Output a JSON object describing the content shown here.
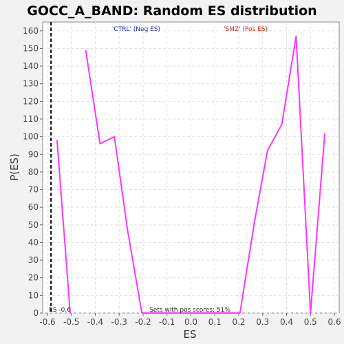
{
  "chart_data": {
    "type": "line",
    "title": "GOCC_A_BAND: Random ES distribution",
    "xlabel": "ES",
    "ylabel": "P(ES)",
    "xlim": [
      -0.62,
      0.62
    ],
    "ylim": [
      0,
      165
    ],
    "xticks": [
      "-0.6",
      "-0.5",
      "-0.4",
      "-0.3",
      "-0.2",
      "-0.1",
      "0.0",
      "0.1",
      "0.2",
      "0.3",
      "0.4",
      "0.5",
      "0.6"
    ],
    "yticks": [
      "0",
      "10",
      "20",
      "30",
      "40",
      "50",
      "60",
      "70",
      "80",
      "90",
      "100",
      "110",
      "120",
      "130",
      "140",
      "150",
      "160"
    ],
    "grid": true,
    "series": [
      {
        "color": "#ff33ff",
        "segments": [
          {
            "x": [
              -0.56,
              -0.505
            ],
            "y": [
              98,
              0
            ]
          },
          {
            "x": [
              -0.44,
              -0.38,
              -0.32,
              -0.265,
              -0.205
            ],
            "y": [
              149,
              96,
              100,
              47,
              0
            ]
          },
          {
            "x": [
              -0.205,
              0.205
            ],
            "y": [
              0,
              0
            ]
          },
          {
            "x": [
              0.205,
              0.265,
              0.32,
              0.38,
              0.44,
              0.5
            ],
            "y": [
              0,
              51,
              92,
              107,
              157,
              0
            ]
          },
          {
            "x": [
              0.5,
              0.56
            ],
            "y": [
              0,
              102
            ]
          }
        ]
      }
    ],
    "reference_line": {
      "x": -0.585,
      "label": "ES -0.6"
    },
    "annotations": {
      "neg_label": "'CTRL' (Neg ES)",
      "pos_label": "'SMZ' (Pos ES)",
      "neg_color": "#2222cc",
      "pos_color": "#dd2222",
      "pos_scores": "Sets with pos scores: 51%"
    }
  }
}
